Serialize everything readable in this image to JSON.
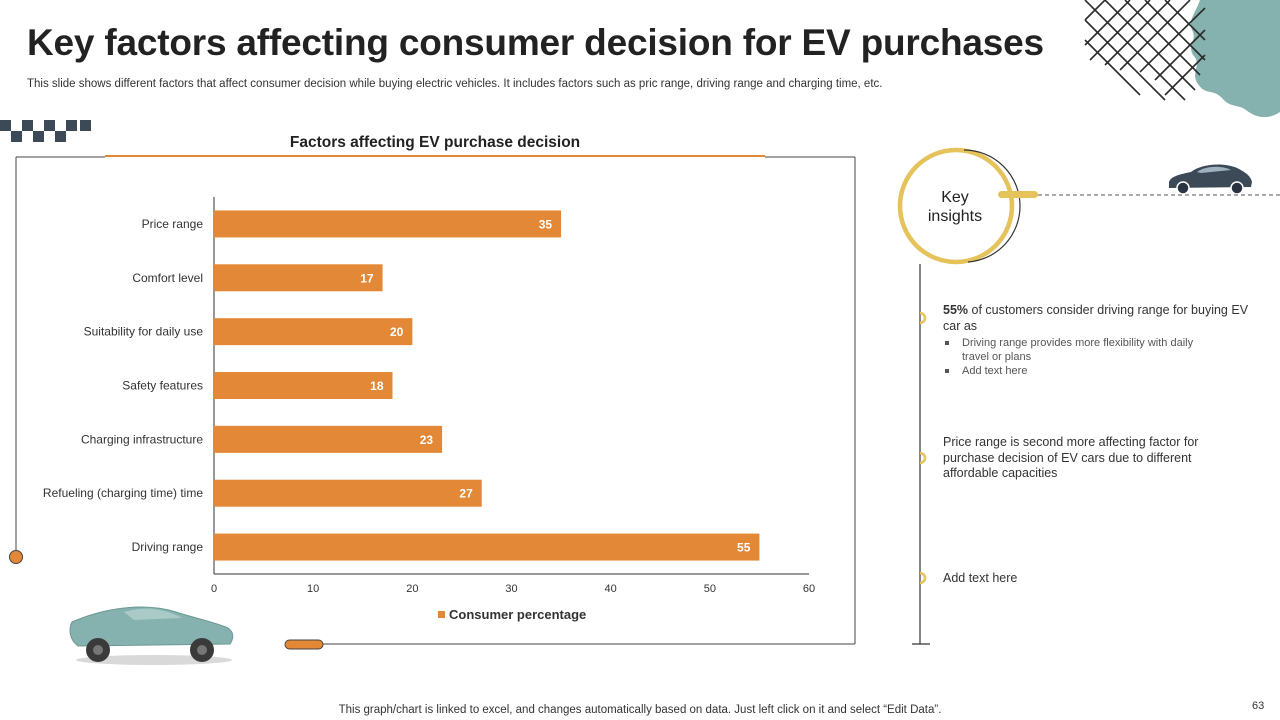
{
  "slide": {
    "title": "Key factors affecting consumer decision for EV purchases",
    "subtitle": "This slide shows different factors that affect consumer decision while buying electric vehicles. It includes factors such as pric range, driving range and charging time, etc.",
    "footer": "This graph/chart is linked to excel, and changes automatically based on data. Just left click on it and select “Edit Data”.",
    "page_number": "63"
  },
  "colors": {
    "bar": "#E38836",
    "accent_yellow": "#E5C25A",
    "teal": "#85B1AE",
    "navy": "#3C4A58"
  },
  "chart_data": {
    "type": "bar",
    "orientation": "horizontal",
    "title": "Factors affecting EV purchase decision",
    "categories": [
      "Price range",
      "Comfort level",
      "Suitability for daily use",
      "Safety features",
      "Charging infrastructure",
      "Refueling (charging time) time",
      "Driving range"
    ],
    "series": [
      {
        "name": "Consumer percentage",
        "values": [
          35,
          17,
          20,
          18,
          23,
          27,
          55
        ]
      }
    ],
    "xlim": [
      0,
      60
    ],
    "xticks": [
      0,
      10,
      20,
      30,
      40,
      50,
      60
    ],
    "grid": false,
    "legend": "bottom-center",
    "data_labels": true
  },
  "insights": {
    "heading": "Key insights",
    "items": [
      {
        "bold": "55%",
        "text": " of customers consider driving range for buying EV car as",
        "bullets": [
          "Driving range provides more flexibility with daily travel or plans",
          "Add text here"
        ]
      },
      {
        "bold": "",
        "text": "Price range is second more affecting factor for purchase decision of EV cars due to different affordable capacities",
        "bullets": []
      },
      {
        "bold": "",
        "text": "Add text here",
        "bullets": []
      }
    ]
  }
}
